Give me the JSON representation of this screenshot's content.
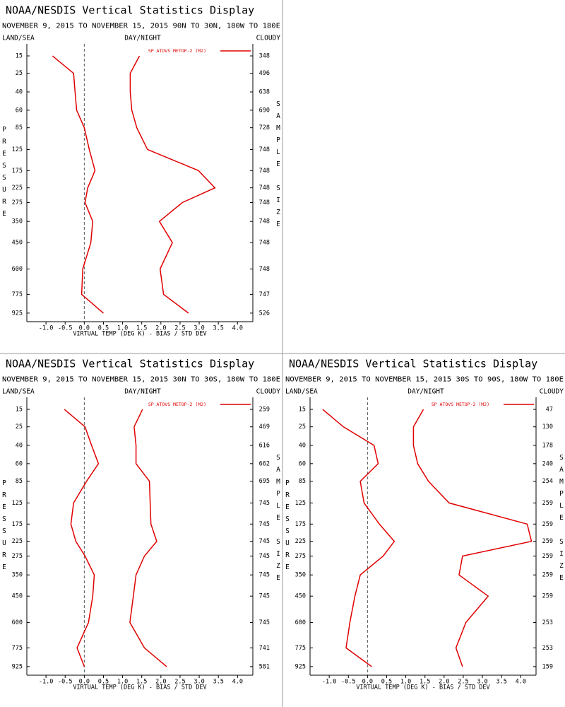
{
  "chart_data": [
    {
      "type": "line",
      "title": "NOAA/NESDIS Vertical Statistics Display",
      "subtitle": "NOVEMBER 9, 2015 TO NOVEMBER 15, 2015 90N TO 30N, 180W TO 180E",
      "left_label": "LAND/SEA",
      "center_label": "DAY/NIGHT",
      "right_label": "CLOUDY",
      "xlabel": "VIRTUAL TEMP (DEG K) - BIAS / STD DEV",
      "ylabel": "PRESSURE",
      "y2label": "SAMPLE SIZE",
      "xlim": [
        -1.5,
        4.4
      ],
      "xticks": [
        {
          "value": -1,
          "label": "-1.0"
        },
        -0.5,
        {
          "value": 0,
          "label": "0.0"
        },
        0.5,
        {
          "value": 1,
          "label": "1.0"
        },
        1.5,
        {
          "value": 2,
          "label": "2.0"
        },
        2.5,
        {
          "value": 3,
          "label": "3.0"
        },
        3.5,
        {
          "value": 4,
          "label": "4.0"
        }
      ],
      "ylim": [
        10,
        1000
      ],
      "yticks": [
        15,
        25,
        40,
        60,
        85,
        125,
        175,
        225,
        275,
        350,
        450,
        600,
        775,
        925
      ],
      "sample_sizes": [
        348,
        496,
        638,
        690,
        728,
        748,
        748,
        748,
        748,
        748,
        748,
        748,
        747,
        526
      ],
      "series": [
        {
          "name": "SP ATOVS METOP-2 (M2)",
          "color": "#e00000",
          "values": [
            -0.83,
            -0.28,
            -0.24,
            -0.2,
            0.0,
            0.13,
            0.28,
            0.09,
            0.02,
            0.22,
            0.17,
            -0.04,
            -0.07,
            0.5
          ]
        },
        {
          "color": "#e00000",
          "values": [
            1.44,
            1.2,
            1.2,
            1.24,
            1.37,
            1.65,
            2.98,
            3.41,
            2.56,
            1.96,
            2.3,
            1.98,
            2.07,
            2.72
          ]
        }
      ]
    },
    {
      "type": "line",
      "title": "NOAA/NESDIS Vertical Statistics Display",
      "subtitle": "NOVEMBER 9, 2015 TO NOVEMBER 15, 2015 30N TO 30S, 180W TO 180E",
      "left_label": "LAND/SEA",
      "center_label": "DAY/NIGHT",
      "right_label": "CLOUDY",
      "xlabel": "VIRTUAL TEMP (DEG K) - BIAS / STD DEV",
      "ylabel": "PRESSURE",
      "y2label": "SAMPLE SIZE",
      "xlim": [
        -1.5,
        4.4
      ],
      "xticks": [
        {
          "value": -1,
          "label": "-1.0"
        },
        -0.5,
        {
          "value": 0,
          "label": "0.0"
        },
        0.5,
        {
          "value": 1,
          "label": "1.0"
        },
        1.5,
        {
          "value": 2,
          "label": "2.0"
        },
        2.5,
        {
          "value": 3,
          "label": "3.0"
        },
        3.5,
        {
          "value": 4,
          "label": "4.0"
        }
      ],
      "ylim": [
        10,
        1000
      ],
      "yticks": [
        15,
        25,
        40,
        60,
        85,
        125,
        175,
        225,
        275,
        350,
        450,
        600,
        775,
        925
      ],
      "sample_sizes": [
        259,
        469,
        616,
        662,
        695,
        745,
        745,
        745,
        745,
        745,
        745,
        745,
        741,
        581
      ],
      "series": [
        {
          "name": "SP ATOVS METOP-2 (M2)",
          "color": "#e00000",
          "values": [
            -0.52,
            0.02,
            0.19,
            0.37,
            0.06,
            -0.28,
            -0.35,
            -0.22,
            0.02,
            0.26,
            0.22,
            0.11,
            -0.19,
            0.0
          ]
        },
        {
          "color": "#e00000",
          "values": [
            1.52,
            1.3,
            1.35,
            1.35,
            1.7,
            1.72,
            1.74,
            1.89,
            1.57,
            1.35,
            1.28,
            1.19,
            1.57,
            2.15
          ]
        }
      ]
    },
    {
      "type": "line",
      "title": "NOAA/NESDIS Vertical Statistics Display",
      "subtitle": "NOVEMBER 9, 2015 TO NOVEMBER 15, 2015 30S TO 90S, 180W TO 180E",
      "left_label": "LAND/SEA",
      "center_label": "DAY/NIGHT",
      "right_label": "CLOUDY",
      "xlabel": "VIRTUAL TEMP (DEG K) - BIAS / STD DEV",
      "ylabel": "PRESSURE",
      "y2label": "SAMPLE SIZE",
      "xlim": [
        -1.5,
        4.4
      ],
      "xticks": [
        {
          "value": -1,
          "label": "-1.0"
        },
        -0.5,
        {
          "value": 0,
          "label": "0.0"
        },
        0.5,
        {
          "value": 1,
          "label": "1.0"
        },
        1.5,
        {
          "value": 2,
          "label": "2.0"
        },
        2.5,
        {
          "value": 3,
          "label": "3.0"
        },
        3.5,
        {
          "value": 4,
          "label": "4.0"
        }
      ],
      "ylim": [
        10,
        1000
      ],
      "yticks": [
        15,
        25,
        40,
        60,
        85,
        125,
        175,
        225,
        275,
        350,
        450,
        600,
        775,
        925
      ],
      "sample_sizes": [
        47,
        130,
        178,
        240,
        254,
        259,
        259,
        259,
        259,
        259,
        259,
        253,
        253,
        159
      ],
      "series": [
        {
          "name": "SP ATOVS METOP-2 (M2)",
          "color": "#e00000",
          "values": [
            -1.17,
            -0.63,
            0.17,
            0.28,
            -0.19,
            -0.09,
            0.31,
            0.7,
            0.41,
            -0.19,
            -0.33,
            -0.46,
            -0.56,
            0.11
          ]
        },
        {
          "color": "#e00000",
          "values": [
            1.46,
            1.2,
            1.2,
            1.31,
            1.59,
            2.13,
            4.17,
            4.28,
            2.48,
            2.39,
            3.15,
            2.57,
            2.31,
            2.48
          ]
        }
      ]
    }
  ]
}
